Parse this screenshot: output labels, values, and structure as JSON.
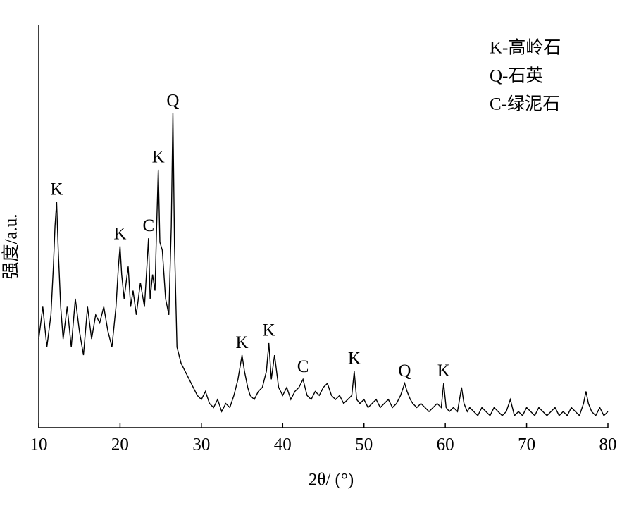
{
  "chart_data": {
    "type": "line",
    "color": "#000000",
    "xlabel": "2θ/ (°)",
    "ylabel": "强度/a.u.",
    "xlim": [
      10,
      80
    ],
    "ylim": [
      0,
      100
    ],
    "xticks": [
      10,
      20,
      30,
      40,
      50,
      60,
      70,
      80
    ],
    "grid": false,
    "legend_position": "upper right",
    "legend_notes": [
      "K-高岭石",
      "Q-石英",
      "C-绿泥石"
    ],
    "annotations": [
      {
        "text": "K",
        "x": 12.2
      },
      {
        "text": "K",
        "x": 20
      },
      {
        "text": "C",
        "x": 23.5
      },
      {
        "text": "K",
        "x": 24.7
      },
      {
        "text": "Q",
        "x": 26.5
      },
      {
        "text": "K",
        "x": 35
      },
      {
        "text": "K",
        "x": 38.3
      },
      {
        "text": "C",
        "x": 42.5
      },
      {
        "text": "K",
        "x": 48.8
      },
      {
        "text": "Q",
        "x": 55
      },
      {
        "text": "K",
        "x": 59.8
      }
    ],
    "x": [
      10,
      10.5,
      11,
      11.5,
      11.8,
      12.0,
      12.2,
      12.4,
      12.7,
      13,
      13.5,
      14,
      14.5,
      15,
      15.5,
      16,
      16.5,
      17,
      17.5,
      18,
      18.5,
      19,
      19.5,
      19.8,
      20,
      20.2,
      20.5,
      21,
      21.3,
      21.6,
      22,
      22.5,
      23,
      23.3,
      23.5,
      23.7,
      24,
      24.3,
      24.5,
      24.7,
      24.9,
      25.2,
      25.6,
      26,
      26.3,
      26.5,
      26.7,
      27,
      27.5,
      28,
      28.5,
      29,
      29.5,
      30,
      30.5,
      31,
      31.5,
      32,
      32.5,
      33,
      33.5,
      34,
      34.5,
      35,
      35.3,
      35.7,
      36,
      36.5,
      37,
      37.5,
      38,
      38.3,
      38.6,
      39,
      39.5,
      40,
      40.5,
      41,
      41.5,
      42,
      42.5,
      43,
      43.5,
      44,
      44.5,
      45,
      45.5,
      46,
      46.5,
      47,
      47.5,
      48,
      48.5,
      48.8,
      49.1,
      49.5,
      50,
      50.5,
      51,
      51.5,
      52,
      52.5,
      53,
      53.5,
      54,
      54.5,
      55,
      55.3,
      55.7,
      56,
      56.5,
      57,
      57.5,
      58,
      58.5,
      59,
      59.5,
      59.8,
      60.1,
      60.5,
      61,
      61.5,
      62,
      62.3,
      62.7,
      63,
      63.5,
      64,
      64.5,
      65,
      65.5,
      66,
      66.5,
      67,
      67.5,
      68,
      68.5,
      69,
      69.5,
      70,
      70.5,
      71,
      71.5,
      72,
      72.5,
      73,
      73.5,
      74,
      74.5,
      75,
      75.5,
      76,
      76.5,
      77,
      77.3,
      77.6,
      78,
      78.5,
      79,
      79.5,
      80
    ],
    "values": [
      22,
      30,
      20,
      28,
      40,
      50,
      56,
      44,
      30,
      22,
      30,
      20,
      32,
      24,
      18,
      30,
      22,
      28,
      26,
      30,
      24,
      20,
      30,
      40,
      45,
      38,
      32,
      40,
      30,
      34,
      28,
      36,
      30,
      40,
      47,
      32,
      38,
      34,
      50,
      64,
      46,
      44,
      32,
      28,
      50,
      78,
      45,
      20,
      16,
      14,
      12,
      10,
      8,
      7,
      9,
      6,
      5,
      7,
      4,
      6,
      5,
      8,
      12,
      18,
      14,
      10,
      8,
      7,
      9,
      10,
      14,
      21,
      12,
      18,
      10,
      8,
      10,
      7,
      9,
      10,
      12,
      8,
      7,
      9,
      8,
      10,
      11,
      8,
      7,
      8,
      6,
      7,
      8,
      14,
      7,
      6,
      7,
      5,
      6,
      7,
      5,
      6,
      7,
      5,
      6,
      8,
      11,
      9,
      7,
      6,
      5,
      6,
      5,
      4,
      5,
      6,
      5,
      11,
      5,
      4,
      5,
      4,
      10,
      6,
      4,
      5,
      4,
      3,
      5,
      4,
      3,
      5,
      4,
      3,
      4,
      7,
      3,
      4,
      3,
      5,
      4,
      3,
      5,
      4,
      3,
      4,
      5,
      3,
      4,
      3,
      5,
      4,
      3,
      6,
      9,
      6,
      4,
      3,
      5,
      3,
      4
    ]
  }
}
